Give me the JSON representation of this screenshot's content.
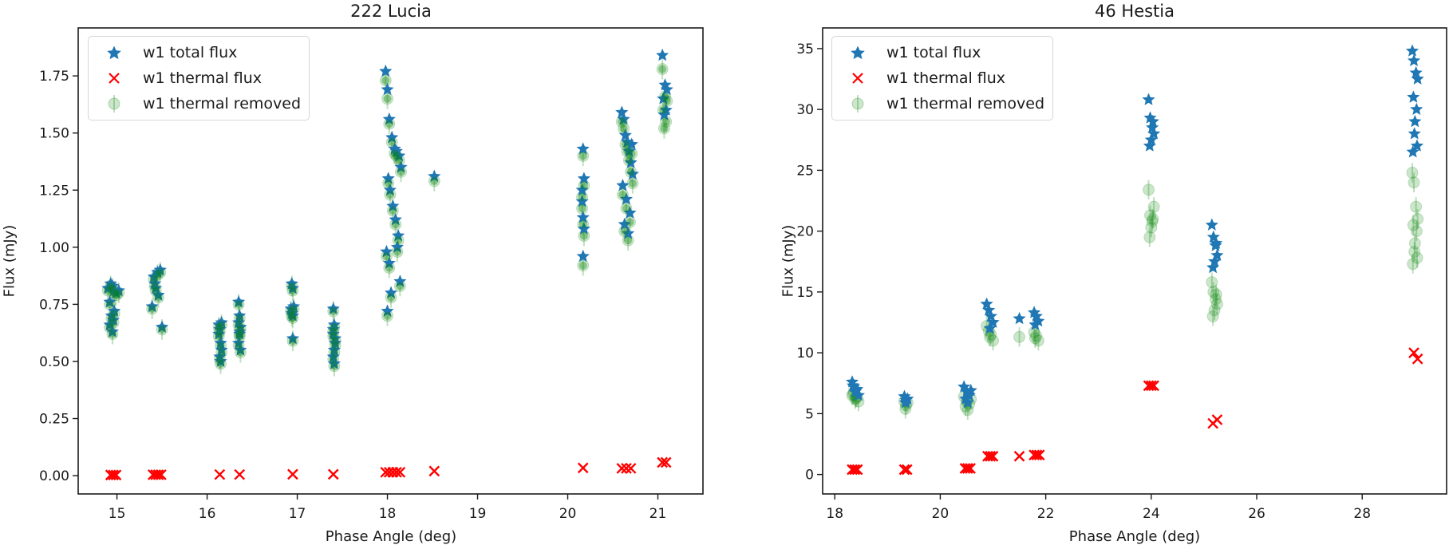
{
  "figure": {
    "panels": [
      {
        "title": "222 Lucia",
        "xlabel": "Phase Angle (deg)",
        "ylabel": "Flux (mJy)"
      },
      {
        "title": "46 Hestia",
        "xlabel": "Phase Angle (deg)",
        "ylabel": "Flux (mJy)"
      }
    ],
    "legend": {
      "items": [
        {
          "label": "w1 total flux",
          "marker": "star",
          "color": "#1f77b4"
        },
        {
          "label": "w1 thermal flux",
          "marker": "x",
          "color": "#ff0000"
        },
        {
          "label": "w1 thermal removed",
          "marker": "circle-errorbar",
          "color": "#008000"
        }
      ]
    },
    "colors": {
      "total": "#1f77b4",
      "thermal": "#ff0000",
      "removed": "#008000",
      "axis": "#1a1a1a",
      "legend_border": "#d6d6d6"
    }
  },
  "chart_data": [
    {
      "type": "scatter",
      "title": "222 Lucia",
      "xlabel": "Phase Angle (deg)",
      "ylabel": "Flux (mJy)",
      "xlim": [
        14.57,
        21.5
      ],
      "ylim": [
        -0.08,
        1.96
      ],
      "xticks": [
        15,
        16,
        17,
        18,
        19,
        20,
        21
      ],
      "yticks": [
        0.0,
        0.25,
        0.5,
        0.75,
        1.0,
        1.25,
        1.5,
        1.75
      ],
      "ytick_labels": [
        "0.00",
        "0.25",
        "0.50",
        "0.75",
        "1.00",
        "1.25",
        "1.50",
        "1.75"
      ],
      "grid": false,
      "legend_position": "upper left",
      "series": [
        {
          "name": "w1 total flux",
          "marker": "star",
          "x": [
            14.93,
            14.95,
            14.97,
            14.9,
            14.92,
            14.99,
            15.02,
            14.94,
            14.96,
            14.92,
            14.95,
            14.97,
            15.39,
            15.42,
            15.45,
            15.48,
            15.43,
            15.5,
            15.46,
            15.41,
            16.13,
            16.14,
            16.15,
            16.16,
            16.14,
            16.15,
            16.13,
            16.16,
            16.35,
            16.36,
            16.37,
            16.36,
            16.35,
            16.37,
            16.36,
            16.35,
            16.94,
            16.95,
            16.96,
            16.94,
            16.95,
            16.93,
            16.95,
            17.4,
            17.41,
            17.4,
            17.42,
            17.41,
            17.4,
            17.41,
            17.4,
            17.42,
            17.98,
            18.0,
            18.02,
            18.05,
            18.08,
            18.1,
            18.13,
            18.15,
            18.01,
            18.03,
            18.06,
            18.09,
            18.12,
            17.99,
            18.02,
            18.14,
            18.04,
            18.0,
            18.11,
            18.52,
            20.17,
            20.18,
            20.16,
            20.17,
            20.18,
            20.17,
            20.16,
            20.6,
            20.62,
            20.64,
            20.66,
            20.68,
            20.7,
            20.72,
            20.61,
            20.65,
            20.69,
            20.63,
            20.71,
            20.67,
            21.05,
            21.08,
            21.1,
            21.06,
            21.09,
            21.07
          ],
          "y": [
            0.84,
            0.83,
            0.81,
            0.82,
            0.76,
            0.8,
            0.81,
            0.7,
            0.68,
            0.66,
            0.63,
            0.72,
            0.74,
            0.84,
            0.89,
            0.9,
            0.82,
            0.65,
            0.79,
            0.87,
            0.66,
            0.64,
            0.58,
            0.55,
            0.52,
            0.5,
            0.62,
            0.67,
            0.76,
            0.7,
            0.65,
            0.62,
            0.58,
            0.55,
            0.63,
            0.67,
            0.84,
            0.82,
            0.74,
            0.71,
            0.6,
            0.73,
            0.7,
            0.73,
            0.66,
            0.62,
            0.58,
            0.55,
            0.52,
            0.49,
            0.64,
            0.6,
            1.77,
            1.69,
            1.56,
            1.48,
            1.43,
            1.42,
            1.4,
            1.35,
            1.3,
            1.25,
            1.18,
            1.12,
            1.05,
            0.98,
            0.93,
            0.85,
            0.8,
            0.72,
            1.0,
            1.31,
            1.43,
            1.3,
            1.25,
            1.13,
            1.08,
            0.96,
            1.2,
            1.59,
            1.56,
            1.49,
            1.46,
            1.42,
            1.37,
            1.32,
            1.27,
            1.21,
            1.15,
            1.1,
            1.45,
            1.06,
            1.84,
            1.71,
            1.69,
            1.65,
            1.6,
            1.58
          ]
        },
        {
          "name": "w1 thermal flux",
          "marker": "x",
          "x": [
            14.93,
            14.96,
            14.99,
            15.4,
            15.43,
            15.46,
            15.49,
            16.14,
            16.36,
            16.95,
            17.4,
            17.98,
            18.02,
            18.06,
            18.1,
            18.14,
            18.52,
            20.17,
            20.6,
            20.65,
            20.7,
            21.05,
            21.09
          ],
          "y": [
            0.003,
            0.003,
            0.003,
            0.004,
            0.004,
            0.004,
            0.004,
            0.005,
            0.005,
            0.006,
            0.006,
            0.015,
            0.015,
            0.015,
            0.015,
            0.015,
            0.02,
            0.034,
            0.032,
            0.032,
            0.032,
            0.058,
            0.058
          ]
        },
        {
          "name": "w1 thermal removed",
          "marker": "circle-errorbar",
          "x": [
            14.93,
            14.95,
            14.97,
            14.9,
            14.92,
            14.99,
            15.02,
            14.94,
            14.96,
            14.92,
            14.95,
            14.97,
            15.39,
            15.42,
            15.45,
            15.48,
            15.43,
            15.5,
            15.46,
            15.41,
            16.13,
            16.14,
            16.15,
            16.16,
            16.14,
            16.15,
            16.13,
            16.16,
            16.35,
            16.36,
            16.37,
            16.36,
            16.35,
            16.37,
            16.36,
            16.35,
            16.94,
            16.95,
            16.96,
            16.94,
            16.95,
            16.93,
            16.95,
            17.4,
            17.41,
            17.4,
            17.42,
            17.41,
            17.4,
            17.41,
            17.4,
            17.42,
            17.98,
            18.0,
            18.02,
            18.05,
            18.08,
            18.1,
            18.13,
            18.15,
            18.01,
            18.03,
            18.06,
            18.09,
            18.12,
            17.99,
            18.02,
            18.14,
            18.04,
            18.0,
            18.11,
            18.52,
            20.17,
            20.18,
            20.16,
            20.17,
            20.18,
            20.17,
            20.16,
            20.6,
            20.62,
            20.64,
            20.66,
            20.68,
            20.7,
            20.72,
            20.61,
            20.65,
            20.69,
            20.63,
            20.71,
            20.67,
            21.05,
            21.08,
            21.1,
            21.06,
            21.09,
            21.07
          ],
          "y": [
            0.83,
            0.82,
            0.8,
            0.81,
            0.75,
            0.79,
            0.8,
            0.69,
            0.67,
            0.65,
            0.62,
            0.71,
            0.73,
            0.83,
            0.88,
            0.89,
            0.81,
            0.64,
            0.78,
            0.86,
            0.65,
            0.63,
            0.57,
            0.54,
            0.51,
            0.49,
            0.61,
            0.66,
            0.75,
            0.69,
            0.64,
            0.61,
            0.57,
            0.54,
            0.62,
            0.66,
            0.83,
            0.81,
            0.73,
            0.7,
            0.59,
            0.72,
            0.69,
            0.72,
            0.65,
            0.61,
            0.57,
            0.54,
            0.51,
            0.48,
            0.63,
            0.59,
            1.73,
            1.65,
            1.54,
            1.46,
            1.41,
            1.4,
            1.38,
            1.33,
            1.28,
            1.23,
            1.16,
            1.1,
            1.03,
            0.96,
            0.91,
            0.83,
            0.78,
            0.7,
            0.98,
            1.29,
            1.4,
            1.27,
            1.22,
            1.1,
            1.05,
            0.92,
            1.17,
            1.55,
            1.52,
            1.45,
            1.42,
            1.38,
            1.33,
            1.28,
            1.23,
            1.17,
            1.11,
            1.07,
            1.41,
            1.03,
            1.78,
            1.66,
            1.64,
            1.6,
            1.55,
            1.52
          ],
          "yerr": 0.045
        }
      ]
    },
    {
      "type": "scatter",
      "title": "46 Hestia",
      "xlabel": "Phase Angle (deg)",
      "ylabel": "Flux (mJy)",
      "xlim": [
        17.77,
        29.6
      ],
      "ylim": [
        -1.6,
        36.7
      ],
      "xticks": [
        18,
        20,
        22,
        24,
        26,
        28
      ],
      "yticks": [
        0,
        5,
        10,
        15,
        20,
        25,
        30,
        35
      ],
      "ytick_labels": [
        "0",
        "5",
        "10",
        "15",
        "20",
        "25",
        "30",
        "35"
      ],
      "grid": false,
      "legend_position": "upper left",
      "series": [
        {
          "name": "w1 total flux",
          "marker": "star",
          "x": [
            18.33,
            18.36,
            18.39,
            18.42,
            18.45,
            18.35,
            18.4,
            19.32,
            19.35,
            19.38,
            19.34,
            20.45,
            20.5,
            20.55,
            20.48,
            20.58,
            20.52,
            20.88,
            20.92,
            20.96,
            21.0,
            20.94,
            21.5,
            21.78,
            21.82,
            21.86,
            21.8,
            23.95,
            23.98,
            24.02,
            24.05,
            24.0,
            23.97,
            24.03,
            25.15,
            25.18,
            25.22,
            25.25,
            25.2,
            25.17,
            25.23,
            28.95,
            28.98,
            29.02,
            29.05,
            28.97,
            29.03,
            29.0,
            28.99,
            29.04,
            28.96
          ],
          "y": [
            7.6,
            7.2,
            6.8,
            7.0,
            6.5,
            7.3,
            6.9,
            6.4,
            6.1,
            6.2,
            5.9,
            7.2,
            6.8,
            6.5,
            6.2,
            6.9,
            5.9,
            14.0,
            13.5,
            13.0,
            12.5,
            12.0,
            12.8,
            13.3,
            13.0,
            12.6,
            12.3,
            30.8,
            29.3,
            28.5,
            28.0,
            27.5,
            27.0,
            29.0,
            20.5,
            19.5,
            18.8,
            18.0,
            17.5,
            17.0,
            19.0,
            34.8,
            34.0,
            33.0,
            32.5,
            31.0,
            30.0,
            29.0,
            28.0,
            27.0,
            26.5
          ]
        },
        {
          "name": "w1 thermal flux",
          "marker": "x",
          "x": [
            18.33,
            18.38,
            18.43,
            19.32,
            19.37,
            20.47,
            20.52,
            20.57,
            20.9,
            20.95,
            21.0,
            21.5,
            21.78,
            21.83,
            21.88,
            23.95,
            24.0,
            24.05,
            25.17,
            25.25,
            28.98,
            29.05
          ],
          "y": [
            0.4,
            0.4,
            0.4,
            0.4,
            0.4,
            0.5,
            0.5,
            0.5,
            1.5,
            1.5,
            1.5,
            1.5,
            1.6,
            1.6,
            1.6,
            7.3,
            7.3,
            7.3,
            4.2,
            4.5,
            10.0,
            9.5
          ]
        },
        {
          "name": "w1 thermal removed",
          "marker": "circle-errorbar",
          "x": [
            18.33,
            18.36,
            18.39,
            18.42,
            18.45,
            18.35,
            18.4,
            19.32,
            19.35,
            19.38,
            19.34,
            20.45,
            20.5,
            20.55,
            20.48,
            20.58,
            20.52,
            20.88,
            20.92,
            20.96,
            21.0,
            20.94,
            21.5,
            21.78,
            21.82,
            21.86,
            21.8,
            23.95,
            23.98,
            24.02,
            24.05,
            24.0,
            23.97,
            24.03,
            25.15,
            25.18,
            25.22,
            25.25,
            25.2,
            25.17,
            25.23,
            28.95,
            28.98,
            29.02,
            29.05,
            28.97,
            29.03,
            29.0,
            28.99,
            29.04,
            28.96
          ],
          "y": [
            6.5,
            6.8,
            6.2,
            6.4,
            6.0,
            6.6,
            6.3,
            6.0,
            5.7,
            5.9,
            5.4,
            6.4,
            6.0,
            5.8,
            5.6,
            6.2,
            5.3,
            12.2,
            11.8,
            11.5,
            11.0,
            11.3,
            11.3,
            11.7,
            11.4,
            11.0,
            11.2,
            23.4,
            21.3,
            20.8,
            22.0,
            20.3,
            19.5,
            21.0,
            15.8,
            15.0,
            14.4,
            14.0,
            13.5,
            13.0,
            14.8,
            24.8,
            24.0,
            22.0,
            21.0,
            20.5,
            20.0,
            19.0,
            18.3,
            17.8,
            17.3
          ],
          "yerr": 0.8
        }
      ]
    }
  ]
}
